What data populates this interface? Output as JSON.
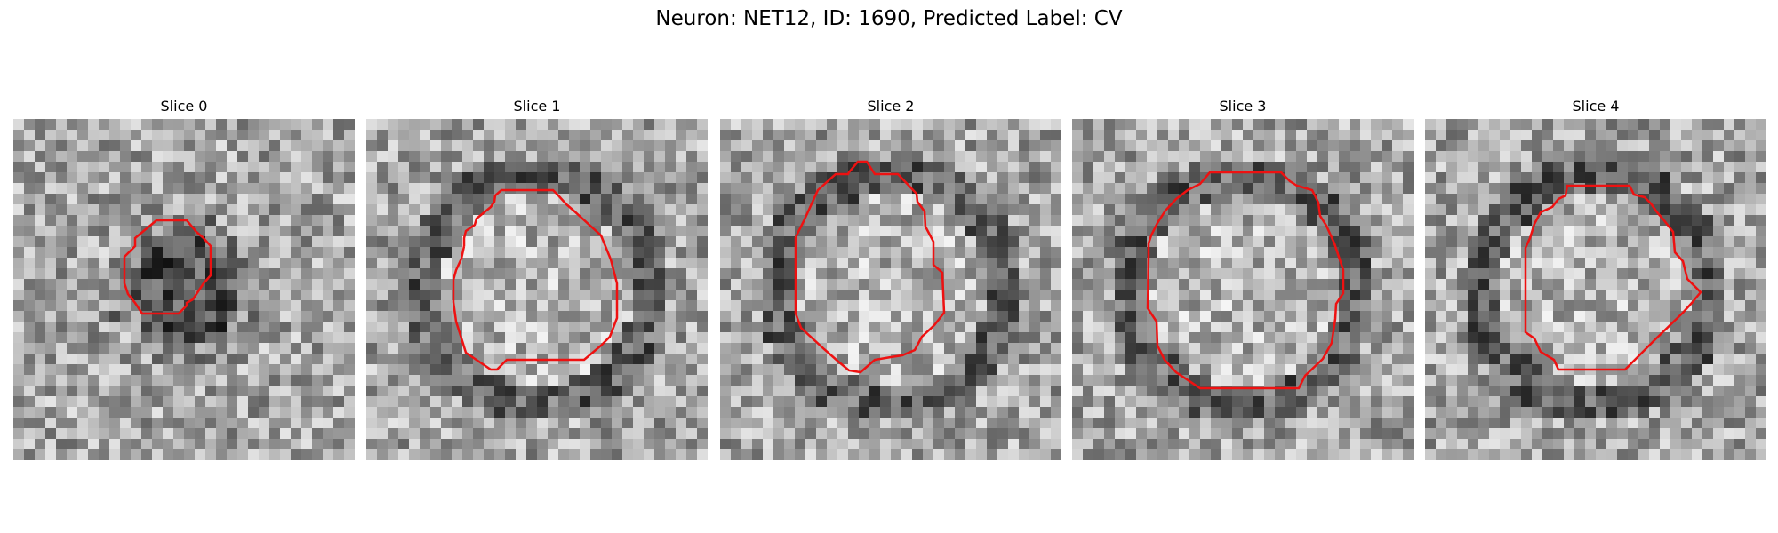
{
  "figure": {
    "title": "Neuron: NET12, ID: 1690, Predicted Label: CV"
  },
  "colors": {
    "contour": "#ee1111",
    "image_cmap": "gray"
  },
  "slices": [
    {
      "title": "Slice 0",
      "seed": 11,
      "dark_core": true
    },
    {
      "title": "Slice 1",
      "seed": 23,
      "dark_core": false
    },
    {
      "title": "Slice 2",
      "seed": 37,
      "dark_core": false
    },
    {
      "title": "Slice 3",
      "seed": 51,
      "dark_core": false
    },
    {
      "title": "Slice 4",
      "seed": 67,
      "dark_core": false
    }
  ]
}
